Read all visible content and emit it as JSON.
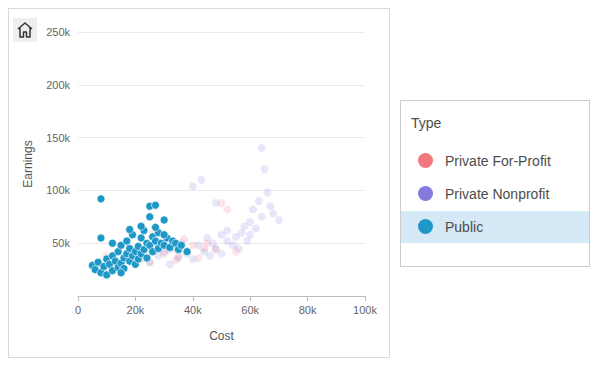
{
  "chart_data": {
    "type": "scatter",
    "x_label": "Cost",
    "y_label": "Earnings",
    "legend_title": "Type",
    "legend": "right",
    "grid": true,
    "xlim": [
      0,
      100000
    ],
    "xticks": [
      0,
      {
        "value": 20000,
        "label": "20k"
      },
      {
        "value": 40000,
        "label": "40k"
      },
      {
        "value": 60000,
        "label": "60k"
      },
      {
        "value": 80000,
        "label": "80k"
      },
      {
        "value": 100000,
        "label": "100k"
      }
    ],
    "ylim": [
      0,
      250000
    ],
    "yticks": [
      {
        "value": 50000,
        "label": "50k"
      },
      {
        "value": 100000,
        "label": "100k"
      },
      {
        "value": 150000,
        "label": "150k"
      },
      {
        "value": 200000,
        "label": "200k"
      },
      {
        "value": 250000,
        "label": "250k"
      }
    ],
    "series": [
      {
        "name": "Private For-Profit",
        "color": "#f0606a",
        "x": [
          10000,
          14000,
          18000,
          20000,
          22000,
          25000,
          28000,
          30000,
          32000,
          33000,
          35000,
          36000,
          37000,
          38000,
          40000,
          42000,
          44000,
          45000,
          48000,
          50000,
          52000,
          55000,
          30000,
          26000,
          34000
        ],
        "values": [
          38000,
          30000,
          45000,
          40000,
          35000,
          32000,
          48000,
          40000,
          44000,
          52000,
          38000,
          46000,
          54000,
          42000,
          48000,
          36000,
          45000,
          50000,
          44000,
          88000,
          82000,
          42000,
          58000,
          60000,
          34000
        ]
      },
      {
        "name": "Private Nonprofit",
        "color": "#6f63d8",
        "x": [
          25000,
          28000,
          30000,
          32000,
          34000,
          35000,
          36000,
          38000,
          40000,
          40000,
          42000,
          43000,
          44000,
          45000,
          46000,
          47000,
          48000,
          50000,
          50000,
          52000,
          52000,
          54000,
          55000,
          56000,
          57000,
          58000,
          59000,
          60000,
          60000,
          61000,
          62000,
          63000,
          64000,
          65000,
          66000,
          67000,
          68000,
          70000,
          48000,
          64000
        ],
        "values": [
          32000,
          38000,
          42000,
          30000,
          45000,
          36000,
          50000,
          40000,
          104000,
          35000,
          48000,
          110000,
          42000,
          55000,
          38000,
          50000,
          45000,
          58000,
          40000,
          52000,
          62000,
          48000,
          56000,
          45000,
          60000,
          66000,
          52000,
          70000,
          58000,
          82000,
          64000,
          90000,
          75000,
          120000,
          98000,
          85000,
          78000,
          72000,
          88000,
          140000
        ]
      },
      {
        "name": "Public",
        "color": "#1e98c6",
        "x": [
          5000,
          6000,
          7000,
          8000,
          8000,
          9000,
          10000,
          10000,
          11000,
          12000,
          12000,
          13000,
          14000,
          14000,
          15000,
          15000,
          16000,
          16000,
          17000,
          17000,
          18000,
          18000,
          19000,
          19000,
          20000,
          20000,
          21000,
          21000,
          22000,
          22000,
          23000,
          23000,
          24000,
          24000,
          25000,
          25000,
          26000,
          26000,
          27000,
          27000,
          28000,
          28000,
          29000,
          30000,
          30000,
          31000,
          32000,
          33000,
          34000,
          35000,
          36000,
          38000,
          8000,
          25000,
          27000,
          30000,
          12000,
          18000,
          22000,
          15000
        ],
        "values": [
          29000,
          25000,
          32000,
          22000,
          92000,
          28000,
          35000,
          20000,
          30000,
          38000,
          24000,
          33000,
          27000,
          42000,
          31000,
          48000,
          36000,
          26000,
          40000,
          52000,
          33000,
          45000,
          38000,
          58000,
          30000,
          42000,
          47000,
          35000,
          55000,
          40000,
          44000,
          62000,
          36000,
          50000,
          48000,
          85000,
          42000,
          56000,
          52000,
          86000,
          45000,
          60000,
          50000,
          48000,
          72000,
          55000,
          46000,
          52000,
          50000,
          44000,
          48000,
          42000,
          55000,
          75000,
          65000,
          58000,
          50000,
          63000,
          66000,
          22000
        ]
      }
    ]
  }
}
